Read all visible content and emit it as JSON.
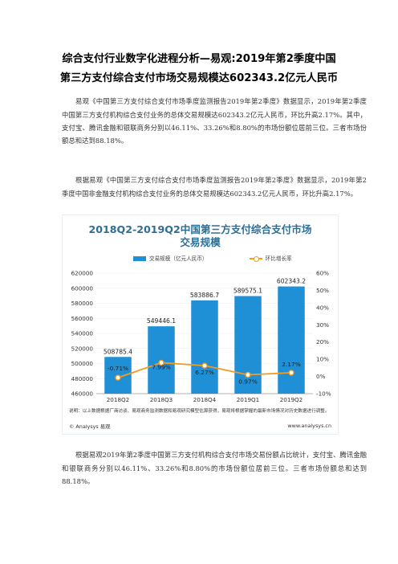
{
  "article": {
    "title_line1": "综合支付行业数字化进程分析—易观:2019年第2季度中国",
    "title_line2": "第三方支付综合支付市场交易规模达602343.2亿元人民币",
    "para1": "易观《中国第三方支付综合支付市场季度监测报告2019年第2季度》数据显示，2019年第2季度中国第三方支付机构综合支付业务的总体交易规模达602343.2亿元人民币，环比升高2.17%。其中，支付宝、腾讯金融和银联商务分别以46.11%、33.26%和8.80%的市场份额位居前三位。三者市场份额总和达到88.18%。",
    "para2": "根据易观《中国第三方支付综合支付市场季度监测报告2019年第2季度》数据显示，2019年第2季度中国非金融支付机构综合支付业务的总体交易规模达602343.2亿元人民币，环比升高2.17%。",
    "para3": "根据易观2019年第2季度中国第三方支付机构综合支付市场交易份额占比统计，支付宝、腾讯金融和银联商务分别以46.11%、33.26%和8.80%的市场份额位居前三位。三者市场份额总和达到88.18%。"
  },
  "chart_data": {
    "type": "bar",
    "title_line1": "2018Q2-2019Q2中国第三方支付综合支付市场",
    "title_line2": "交易规模",
    "categories": [
      "2018Q2",
      "2018Q3",
      "2018Q4",
      "2019Q1",
      "2019Q2"
    ],
    "series": [
      {
        "name": "交易规模（亿元人民币）",
        "type": "bar",
        "values": [
          508785.4,
          549446.1,
          583886.7,
          589575.1,
          602343.2
        ],
        "labels": [
          "508785.4",
          "549446.1",
          "583886.7",
          "589575.1",
          "602343.2"
        ]
      },
      {
        "name": "环比增长率",
        "type": "line",
        "values": [
          -0.71,
          7.99,
          6.27,
          0.97,
          2.17
        ],
        "labels": [
          "-0.71%",
          "7.99%",
          "6.27%",
          "0.97%",
          "2.17%"
        ]
      }
    ],
    "ylim_left": [
      460000,
      620000
    ],
    "yticks_left": [
      "620000",
      "600000",
      "580000",
      "560000",
      "540000",
      "520000",
      "500000",
      "480000",
      "460000"
    ],
    "ylim_right": [
      -10,
      60
    ],
    "yticks_right": [
      "60%",
      "50%",
      "40%",
      "30%",
      "20%",
      "10%",
      "0%",
      "-10%"
    ],
    "colors": {
      "bar": "#1f8fd6",
      "line": "#f39b1f"
    },
    "note": "说明：以上数据根据厂商访谈、易观商务监测数据和易观研究模型估算获得，易观将根据掌握的最新市场情况对历史数据进行调整。",
    "source": "© Analysys 易观",
    "website": "www.analysys.cn"
  }
}
